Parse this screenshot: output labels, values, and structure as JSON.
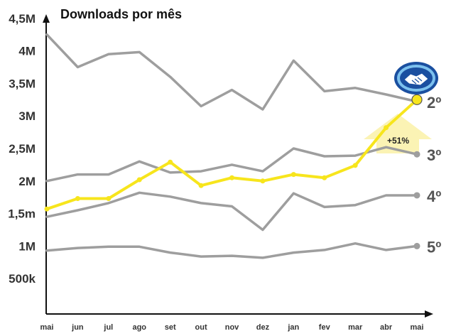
{
  "chart_data": {
    "type": "line",
    "title": "Downloads por mês",
    "categories": [
      "mai",
      "jun",
      "jul",
      "ago",
      "set",
      "out",
      "nov",
      "dez",
      "jan",
      "fev",
      "mar",
      "abr",
      "mai"
    ],
    "y_ticks": [
      "500k",
      "1M",
      "1,5m",
      "2M",
      "2,5M",
      "3M",
      "3,5M",
      "4M",
      "4,5M"
    ],
    "ylim": [
      0,
      4.5
    ],
    "series": [
      {
        "values": [
          4.25,
          3.75,
          3.95,
          3.98,
          3.6,
          3.15,
          3.4,
          3.1,
          3.85,
          3.38,
          3.43,
          3.33,
          3.22
        ],
        "color": "#9e9e9e",
        "rank": "2º"
      },
      {
        "values": [
          2.0,
          2.1,
          2.1,
          2.3,
          2.13,
          2.15,
          2.25,
          2.15,
          2.5,
          2.38,
          2.39,
          2.52,
          2.41
        ],
        "color": "#9e9e9e",
        "rank": "3º"
      },
      {
        "values": [
          1.45,
          1.55,
          1.66,
          1.82,
          1.76,
          1.66,
          1.61,
          1.25,
          1.81,
          1.6,
          1.63,
          1.78,
          1.78
        ],
        "color": "#9e9e9e",
        "rank": "4º"
      },
      {
        "values": [
          0.93,
          0.97,
          0.99,
          0.99,
          0.9,
          0.84,
          0.85,
          0.82,
          0.9,
          0.94,
          1.04,
          0.94,
          1.0
        ],
        "color": "#9e9e9e",
        "rank": "5º"
      },
      {
        "values": [
          1.57,
          1.73,
          1.73,
          2.02,
          2.29,
          1.93,
          2.05,
          2.0,
          2.1,
          2.05,
          2.24,
          2.82,
          3.25
        ],
        "color": "#f7e51c",
        "highlight": true
      }
    ],
    "annotation": "+51%",
    "grid": false,
    "legend": "none"
  },
  "colors": {
    "highlight": "#f7e51c",
    "gray": "#9e9e9e",
    "axis": "#111111",
    "arrow": "#fbf3b4"
  },
  "logo": {
    "name": "handshake-logo-icon"
  }
}
